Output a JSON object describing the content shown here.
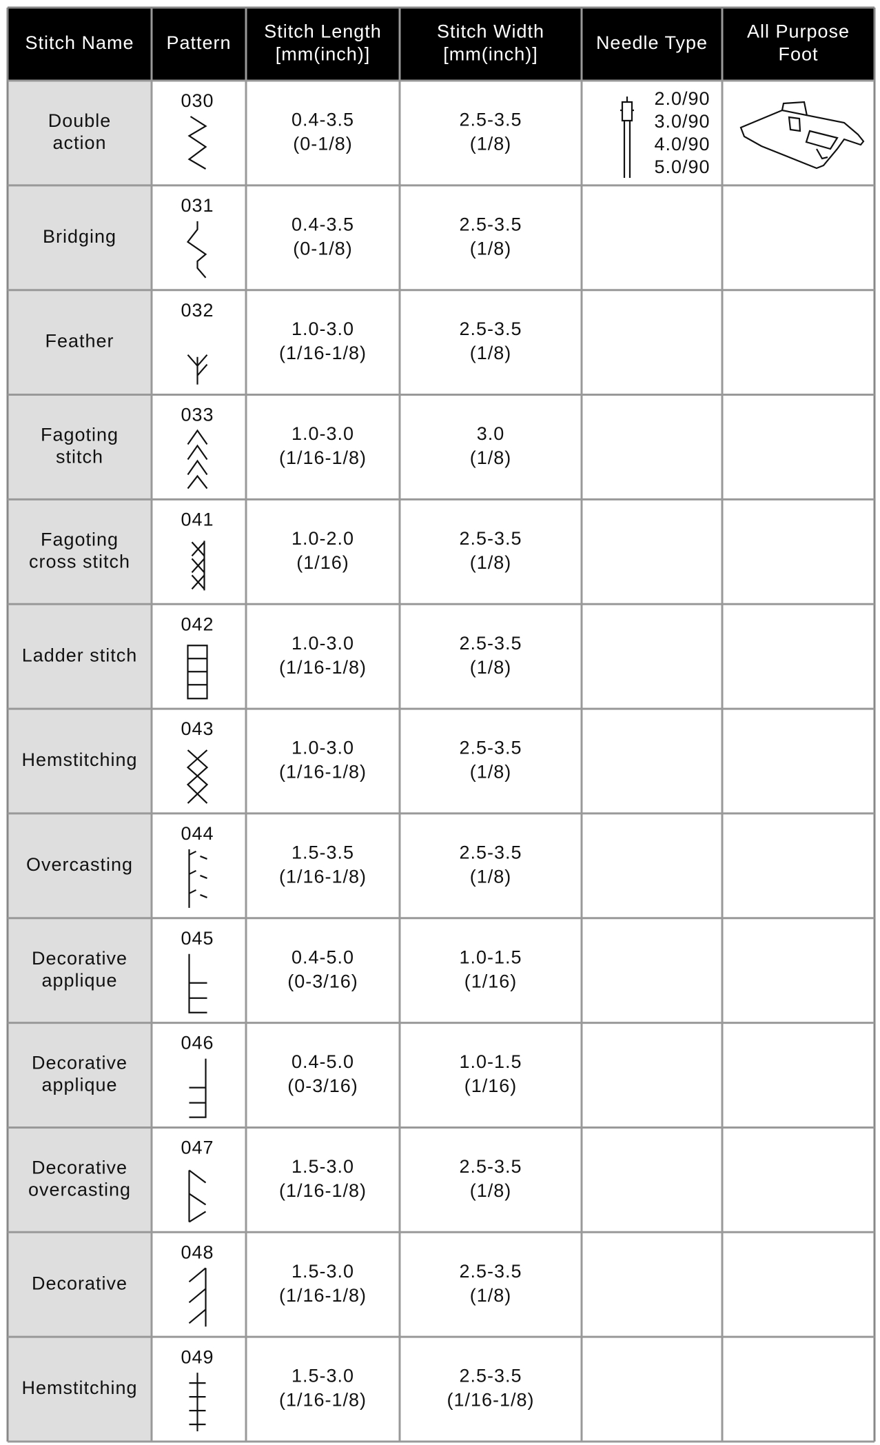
{
  "header": [
    [
      "Stitch Name"
    ],
    [
      "Pattern"
    ],
    [
      "Stitch Length",
      "[mm(inch)]"
    ],
    [
      "Stitch Width",
      "[mm(inch)]"
    ],
    [
      "Needle Type"
    ],
    [
      "All Purpose",
      "Foot"
    ]
  ],
  "rows": [
    {
      "name": [
        "Double",
        "action"
      ],
      "pattern": "030",
      "length": [
        "0.4-3.5",
        "(0-1/8)"
      ],
      "width": [
        "2.5-3.5",
        "(1/8)"
      ]
    },
    {
      "name": [
        "Bridging"
      ],
      "pattern": "031",
      "length": [
        "0.4-3.5",
        "(0-1/8)"
      ],
      "width": [
        "2.5-3.5",
        "(1/8)"
      ]
    },
    {
      "name": [
        "Feather"
      ],
      "pattern": "032",
      "length": [
        "1.0-3.0",
        "(1/16-1/8)"
      ],
      "width": [
        "2.5-3.5",
        "(1/8)"
      ]
    },
    {
      "name": [
        "Fagoting",
        "stitch"
      ],
      "pattern": "033",
      "length": [
        "1.0-3.0",
        "(1/16-1/8)"
      ],
      "width": [
        "3.0",
        "(1/8)"
      ]
    },
    {
      "name": [
        "Fagoting",
        "cross stitch"
      ],
      "pattern": "041",
      "length": [
        "1.0-2.0",
        "(1/16)"
      ],
      "width": [
        "2.5-3.5",
        "(1/8)"
      ]
    },
    {
      "name": [
        "Ladder stitch"
      ],
      "pattern": "042",
      "length": [
        "1.0-3.0",
        "(1/16-1/8)"
      ],
      "width": [
        "2.5-3.5",
        "(1/8)"
      ]
    },
    {
      "name": [
        "Hemstitching"
      ],
      "pattern": "043",
      "length": [
        "1.0-3.0",
        "(1/16-1/8)"
      ],
      "width": [
        "2.5-3.5",
        "(1/8)"
      ]
    },
    {
      "name": [
        "Overcasting"
      ],
      "pattern": "044",
      "length": [
        "1.5-3.5",
        "(1/16-1/8)"
      ],
      "width": [
        "2.5-3.5",
        "(1/8)"
      ]
    },
    {
      "name": [
        "Decorative",
        "applique"
      ],
      "pattern": "045",
      "length": [
        "0.4-5.0",
        "(0-3/16)"
      ],
      "width": [
        "1.0-1.5",
        "(1/16)"
      ]
    },
    {
      "name": [
        "Decorative",
        "applique"
      ],
      "pattern": "046",
      "length": [
        "0.4-5.0",
        "(0-3/16)"
      ],
      "width": [
        "1.0-1.5",
        "(1/16)"
      ]
    },
    {
      "name": [
        "Decorative",
        "overcasting"
      ],
      "pattern": "047",
      "length": [
        "1.5-3.0",
        "(1/16-1/8)"
      ],
      "width": [
        "2.5-3.5",
        "(1/8)"
      ]
    },
    {
      "name": [
        "Decorative"
      ],
      "pattern": "048",
      "length": [
        "1.5-3.0",
        "(1/16-1/8)"
      ],
      "width": [
        "2.5-3.5",
        "(1/8)"
      ]
    },
    {
      "name": [
        "Hemstitching"
      ],
      "pattern": "049",
      "length": [
        "1.5-3.0",
        "(1/16-1/8)"
      ],
      "width": [
        "2.5-3.5",
        "(1/16-1/8)"
      ]
    }
  ],
  "needle": [
    "2.0/90",
    "3.0/90",
    "4.0/90",
    "5.0/90"
  ]
}
